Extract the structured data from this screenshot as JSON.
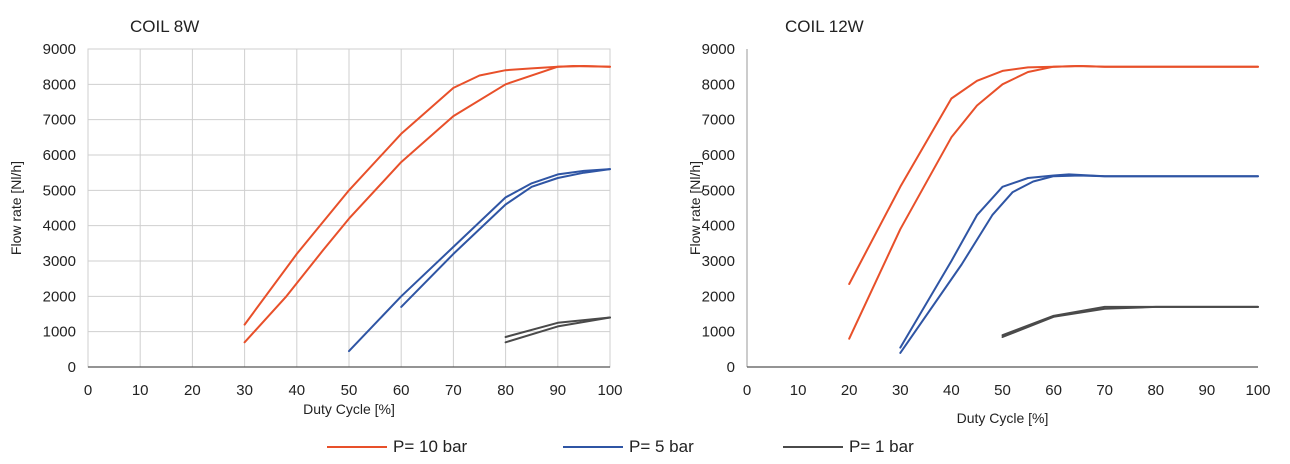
{
  "colors": {
    "p10": "#e8502a",
    "p5": "#2f55a4",
    "p1": "#4a4a4a",
    "grid": "#cfcfcf",
    "axis": "#555555"
  },
  "legend": [
    {
      "label": "P= 10 bar",
      "color": "#e8502a"
    },
    {
      "label": "P= 5 bar",
      "color": "#2f55a4"
    },
    {
      "label": "P= 1 bar",
      "color": "#4a4a4a"
    }
  ],
  "chart_data": [
    {
      "type": "line",
      "title": "COIL 8W",
      "xlabel": "Duty Cycle [%]",
      "ylabel": "Flow rate  [Nl/h]",
      "xlim": [
        0,
        100
      ],
      "ylim": [
        0,
        9000
      ],
      "xticks": [
        0,
        10,
        20,
        30,
        40,
        50,
        60,
        70,
        80,
        90,
        100
      ],
      "yticks": [
        0,
        1000,
        2000,
        3000,
        4000,
        5000,
        6000,
        7000,
        8000,
        9000
      ],
      "grid": true,
      "series": [
        {
          "group": "p10",
          "x": [
            30,
            40,
            50,
            60,
            70,
            75,
            80,
            85,
            90,
            95,
            100
          ],
          "y": [
            1200,
            3200,
            5000,
            6600,
            7900,
            8250,
            8400,
            8450,
            8500,
            8520,
            8500
          ]
        },
        {
          "group": "p10",
          "x": [
            30,
            38,
            45,
            50,
            60,
            70,
            80,
            90,
            93,
            100
          ],
          "y": [
            700,
            2000,
            3300,
            4200,
            5800,
            7100,
            8000,
            8500,
            8520,
            8500
          ]
        },
        {
          "group": "p5",
          "x": [
            50,
            60,
            70,
            80,
            85,
            90,
            95,
            100
          ],
          "y": [
            450,
            2000,
            3400,
            4800,
            5200,
            5450,
            5550,
            5600
          ]
        },
        {
          "group": "p5",
          "x": [
            60,
            70,
            80,
            85,
            90,
            95,
            100
          ],
          "y": [
            1700,
            3200,
            4600,
            5100,
            5350,
            5500,
            5600
          ]
        },
        {
          "group": "p1",
          "x": [
            80,
            90,
            100
          ],
          "y": [
            850,
            1250,
            1400
          ]
        },
        {
          "group": "p1",
          "x": [
            80,
            90,
            100
          ],
          "y": [
            700,
            1150,
            1400
          ]
        }
      ]
    },
    {
      "type": "line",
      "title": "COIL 12W",
      "xlabel": "Duty Cycle [%]",
      "ylabel": "Flow rate  [Nl/h]",
      "xlim": [
        0,
        100
      ],
      "ylim": [
        0,
        9000
      ],
      "xticks": [
        0,
        10,
        20,
        30,
        40,
        50,
        60,
        70,
        80,
        90,
        100
      ],
      "yticks": [
        0,
        1000,
        2000,
        3000,
        4000,
        5000,
        6000,
        7000,
        8000,
        9000
      ],
      "grid": false,
      "series": [
        {
          "group": "p10",
          "x": [
            20,
            30,
            40,
            45,
            50,
            55,
            60,
            65,
            70,
            80,
            100
          ],
          "y": [
            2350,
            5100,
            7600,
            8100,
            8380,
            8480,
            8500,
            8520,
            8500,
            8500,
            8500
          ]
        },
        {
          "group": "p10",
          "x": [
            20,
            30,
            40,
            45,
            50,
            55,
            60,
            65,
            70,
            80,
            100
          ],
          "y": [
            800,
            3900,
            6500,
            7400,
            8000,
            8350,
            8500,
            8520,
            8500,
            8500,
            8500
          ]
        },
        {
          "group": "p5",
          "x": [
            30,
            40,
            45,
            50,
            55,
            60,
            63,
            70,
            100
          ],
          "y": [
            550,
            3000,
            4300,
            5100,
            5350,
            5420,
            5450,
            5400,
            5400
          ]
        },
        {
          "group": "p5",
          "x": [
            30,
            42,
            48,
            52,
            56,
            60,
            65,
            70,
            100
          ],
          "y": [
            400,
            2900,
            4300,
            4950,
            5250,
            5400,
            5420,
            5400,
            5400
          ]
        },
        {
          "group": "p1",
          "x": [
            50,
            60,
            70,
            80,
            100
          ],
          "y": [
            900,
            1450,
            1700,
            1700,
            1700
          ]
        },
        {
          "group": "p1",
          "x": [
            50,
            60,
            70,
            80,
            100
          ],
          "y": [
            850,
            1420,
            1650,
            1700,
            1700
          ]
        }
      ]
    }
  ]
}
